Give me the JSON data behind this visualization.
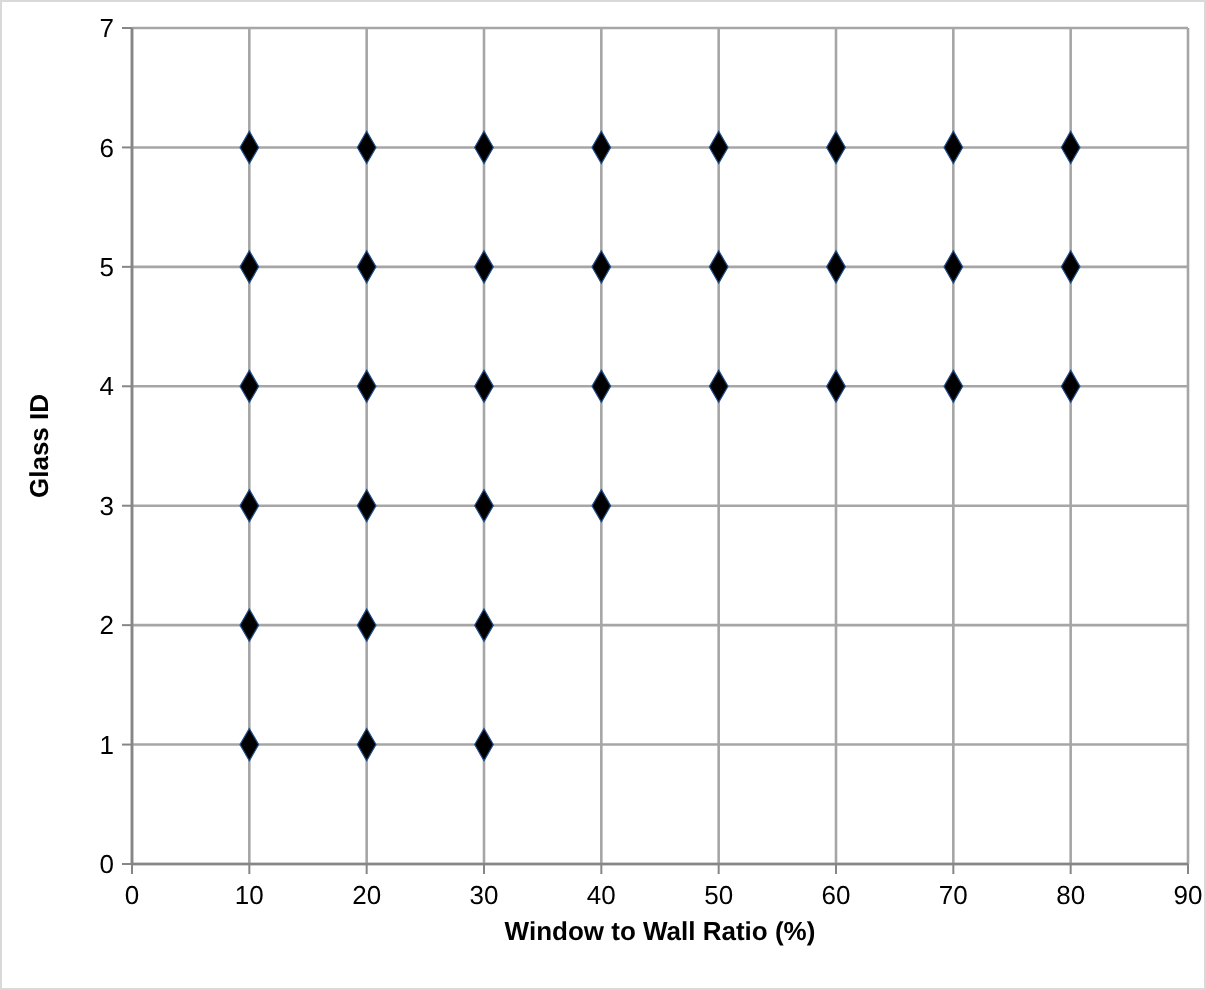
{
  "chart_data": {
    "type": "scatter",
    "xlabel": "Window to Wall Ratio (%)",
    "ylabel": "Glass ID",
    "x": [
      10,
      10,
      10,
      10,
      10,
      10,
      20,
      20,
      20,
      20,
      20,
      20,
      30,
      30,
      30,
      30,
      30,
      30,
      40,
      40,
      40,
      40,
      50,
      50,
      50,
      60,
      60,
      60,
      70,
      70,
      70,
      80,
      80,
      80
    ],
    "values": [
      1,
      2,
      3,
      4,
      5,
      6,
      1,
      2,
      3,
      4,
      5,
      6,
      1,
      2,
      3,
      4,
      5,
      6,
      3,
      4,
      5,
      6,
      4,
      5,
      6,
      4,
      5,
      6,
      4,
      5,
      6,
      4,
      5,
      6
    ],
    "color": "#000000",
    "marker": "diamond",
    "xlim": [
      0,
      90
    ],
    "xticks": [
      0,
      10,
      20,
      30,
      40,
      50,
      60,
      70,
      80,
      90
    ],
    "ylim": [
      0,
      7
    ],
    "yticks": [
      0,
      1,
      2,
      3,
      4,
      5,
      6,
      7
    ],
    "grid": true
  }
}
